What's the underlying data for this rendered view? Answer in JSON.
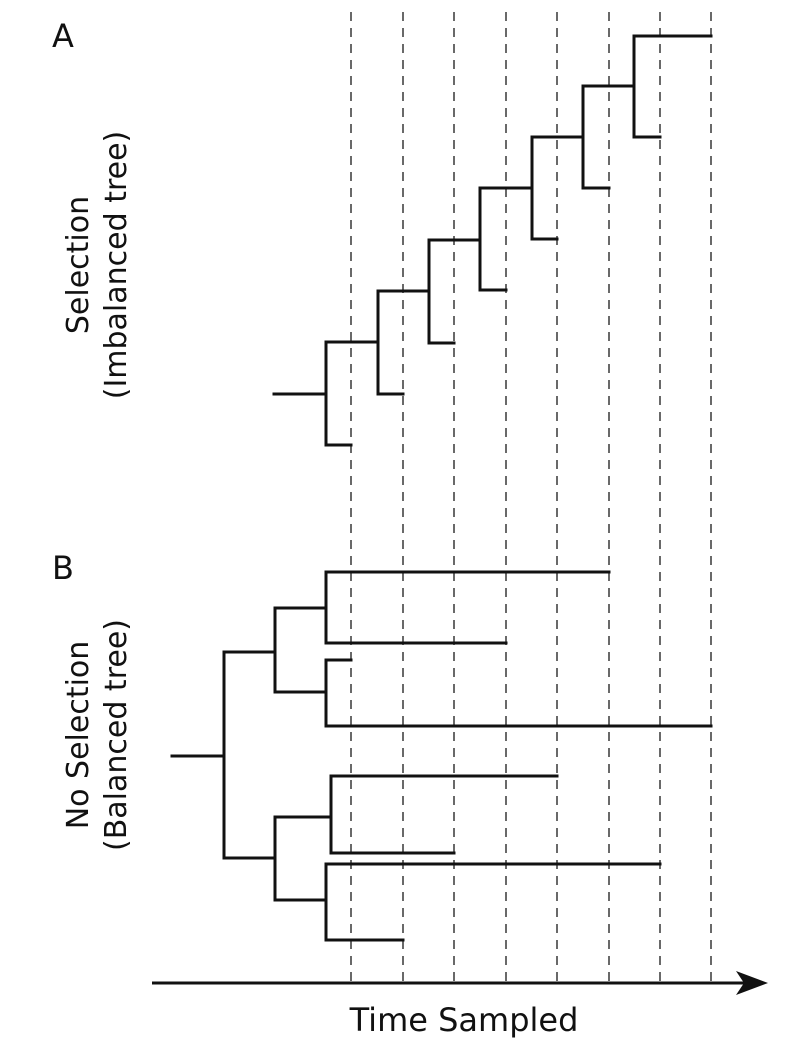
{
  "figure": {
    "panel_a": {
      "label": "A",
      "title_line1": "Selection",
      "title_line2": "(Imbalanced tree)"
    },
    "panel_b": {
      "label": "B",
      "title_line1": "No Selection",
      "title_line2": "(Balanced tree)"
    },
    "time_axis": {
      "label": "Time Sampled",
      "sampling_times": 8
    }
  },
  "trees": {
    "imbalanced": {
      "tips": 8,
      "tip_sample_times": [
        1,
        2,
        3,
        4,
        5,
        6,
        7,
        8
      ]
    },
    "balanced": {
      "tips": 8,
      "tip_sample_times": [
        6,
        4,
        1,
        8,
        5,
        3,
        7,
        2
      ]
    }
  }
}
